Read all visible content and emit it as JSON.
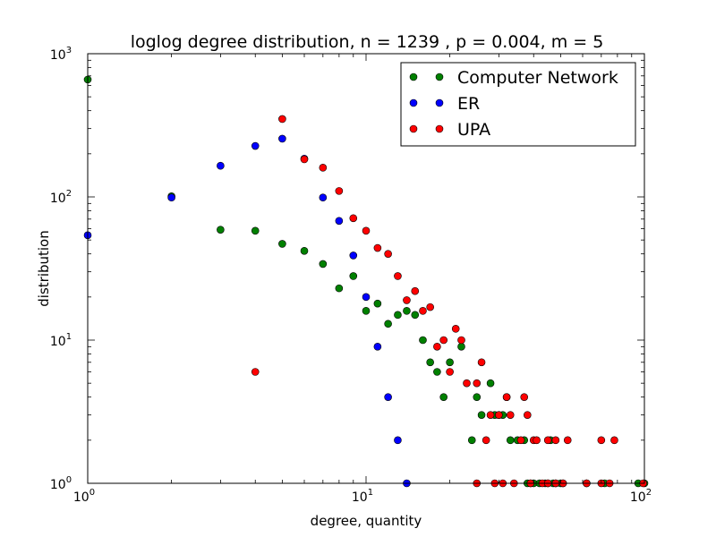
{
  "chart_data": {
    "type": "scatter",
    "title": "loglog degree distribution, n = 1239 , p = 0.004, m = 5",
    "xlabel": "degree, quantity",
    "ylabel": "distribution",
    "xscale": "log",
    "yscale": "log",
    "xlim": [
      1,
      100
    ],
    "ylim": [
      1,
      1000
    ],
    "x_ticks": [
      {
        "value": 1,
        "base": "10",
        "exp": "0"
      },
      {
        "value": 10,
        "base": "10",
        "exp": "1"
      },
      {
        "value": 100,
        "base": "10",
        "exp": "2"
      }
    ],
    "y_ticks": [
      {
        "value": 1,
        "base": "10",
        "exp": "0"
      },
      {
        "value": 10,
        "base": "10",
        "exp": "1"
      },
      {
        "value": 100,
        "base": "10",
        "exp": "2"
      },
      {
        "value": 1000,
        "base": "10",
        "exp": "3"
      }
    ],
    "grid": false,
    "legend_position": "top-right",
    "series": [
      {
        "name": "Computer Network",
        "color": "#008000",
        "points": [
          [
            1,
            660
          ],
          [
            2,
            101
          ],
          [
            3,
            59
          ],
          [
            4,
            58
          ],
          [
            5,
            47
          ],
          [
            6,
            42
          ],
          [
            7,
            34
          ],
          [
            8,
            23
          ],
          [
            9,
            28
          ],
          [
            10,
            16
          ],
          [
            11,
            18
          ],
          [
            12,
            13
          ],
          [
            13,
            15
          ],
          [
            14,
            16
          ],
          [
            15,
            15
          ],
          [
            16,
            10
          ],
          [
            17,
            7
          ],
          [
            18,
            6
          ],
          [
            19,
            4
          ],
          [
            20,
            7
          ],
          [
            22,
            9
          ],
          [
            24,
            2
          ],
          [
            25,
            4
          ],
          [
            26,
            3
          ],
          [
            28,
            5
          ],
          [
            29,
            3
          ],
          [
            30,
            3
          ],
          [
            31,
            3
          ],
          [
            32,
            4
          ],
          [
            33,
            2
          ],
          [
            35,
            2
          ],
          [
            37,
            2
          ],
          [
            38,
            1
          ],
          [
            39,
            1
          ],
          [
            40,
            1
          ],
          [
            42,
            1
          ],
          [
            44,
            1
          ],
          [
            45,
            1
          ],
          [
            46,
            2
          ],
          [
            47,
            1
          ],
          [
            48,
            1
          ],
          [
            50,
            1
          ],
          [
            51,
            1
          ],
          [
            62,
            1
          ],
          [
            72,
            1
          ],
          [
            95,
            1
          ],
          [
            100,
            1
          ]
        ]
      },
      {
        "name": "ER",
        "color": "#0000ff",
        "points": [
          [
            1,
            54
          ],
          [
            2,
            99
          ],
          [
            3,
            165
          ],
          [
            4,
            227
          ],
          [
            5,
            255
          ],
          [
            6,
            185
          ],
          [
            7,
            99
          ],
          [
            8,
            68
          ],
          [
            9,
            39
          ],
          [
            10,
            20
          ],
          [
            11,
            9
          ],
          [
            12,
            4
          ],
          [
            13,
            2
          ],
          [
            14,
            1
          ]
        ]
      },
      {
        "name": "UPA",
        "color": "#ff0000",
        "points": [
          [
            4,
            6
          ],
          [
            5,
            350
          ],
          [
            6,
            183
          ],
          [
            7,
            160
          ],
          [
            8,
            110
          ],
          [
            9,
            71
          ],
          [
            10,
            58
          ],
          [
            11,
            44
          ],
          [
            12,
            40
          ],
          [
            13,
            28
          ],
          [
            14,
            19
          ],
          [
            15,
            22
          ],
          [
            16,
            16
          ],
          [
            17,
            17
          ],
          [
            18,
            9
          ],
          [
            19,
            10
          ],
          [
            20,
            6
          ],
          [
            21,
            12
          ],
          [
            22,
            10
          ],
          [
            23,
            5
          ],
          [
            25,
            5
          ],
          [
            26,
            7
          ],
          [
            27,
            2
          ],
          [
            28,
            3
          ],
          [
            30,
            3
          ],
          [
            32,
            4
          ],
          [
            33,
            3
          ],
          [
            36,
            2
          ],
          [
            37,
            4
          ],
          [
            38,
            3
          ],
          [
            40,
            2
          ],
          [
            41,
            2
          ],
          [
            45,
            2
          ],
          [
            48,
            2
          ],
          [
            53,
            2
          ],
          [
            70,
            2
          ],
          [
            78,
            2
          ],
          [
            25,
            1
          ],
          [
            29,
            1
          ],
          [
            31,
            1
          ],
          [
            34,
            1
          ],
          [
            39,
            1
          ],
          [
            43,
            1
          ],
          [
            45,
            1
          ],
          [
            48,
            1
          ],
          [
            51,
            1
          ],
          [
            62,
            1
          ],
          [
            70,
            1
          ],
          [
            75,
            1
          ],
          [
            99,
            1
          ]
        ]
      }
    ]
  }
}
